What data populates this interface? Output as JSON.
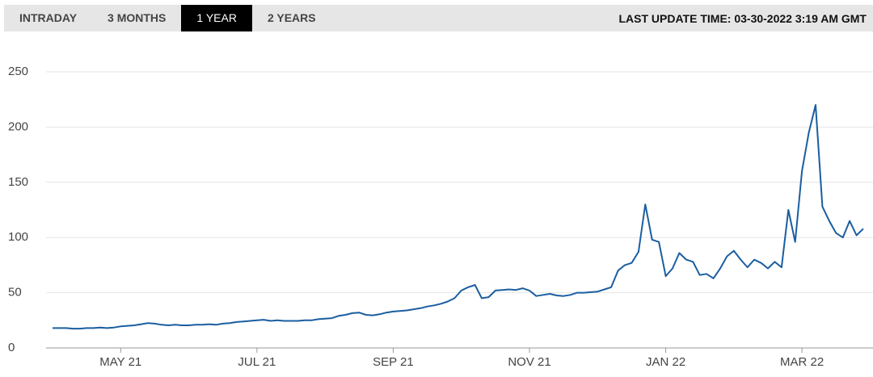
{
  "tabs": [
    {
      "label": "INTRADAY",
      "active": false
    },
    {
      "label": "3 MONTHS",
      "active": false
    },
    {
      "label": "1 YEAR",
      "active": true
    },
    {
      "label": "2 YEARS",
      "active": false
    }
  ],
  "last_update": "LAST UPDATE TIME: 03-30-2022 3:19 AM GMT",
  "chart_data": {
    "type": "line",
    "color": "#1a5ea0",
    "grid": true,
    "ylim": [
      0,
      250
    ],
    "yticks": [
      0,
      50,
      100,
      150,
      200,
      250
    ],
    "categories": [
      null,
      null,
      null,
      null,
      null,
      null,
      null,
      null,
      null,
      null,
      "MAY 21",
      null,
      null,
      null,
      null,
      null,
      null,
      null,
      null,
      null,
      null,
      null,
      null,
      null,
      null,
      null,
      null,
      null,
      null,
      null,
      "JUL 21",
      null,
      null,
      null,
      null,
      null,
      null,
      null,
      null,
      null,
      null,
      null,
      null,
      null,
      null,
      null,
      null,
      null,
      null,
      null,
      "SEP 21",
      null,
      null,
      null,
      null,
      null,
      null,
      null,
      null,
      null,
      null,
      null,
      null,
      null,
      null,
      null,
      null,
      null,
      null,
      null,
      "NOV 21",
      null,
      null,
      null,
      null,
      null,
      null,
      null,
      null,
      null,
      null,
      null,
      null,
      null,
      null,
      null,
      null,
      null,
      null,
      null,
      "JAN 22",
      null,
      null,
      null,
      null,
      null,
      null,
      null,
      null,
      null,
      null,
      null,
      null,
      null,
      null,
      null,
      null,
      null,
      null,
      null,
      "MAR 22",
      null,
      null,
      null,
      null,
      null,
      null,
      null,
      null,
      null
    ],
    "values": [
      18,
      18,
      18,
      17.5,
      17.5,
      18,
      18,
      18.5,
      18,
      18.5,
      19.5,
      20,
      20.5,
      21.5,
      22.5,
      22,
      21,
      20.5,
      21,
      20.5,
      20.5,
      21,
      21,
      21.5,
      21,
      22,
      22.5,
      23.5,
      24,
      24.5,
      25,
      25.5,
      24.5,
      25,
      24.5,
      24.5,
      24.5,
      25,
      25,
      26,
      26.5,
      27,
      29,
      30,
      31.5,
      32,
      30,
      29.5,
      30.5,
      32,
      33,
      33.5,
      34,
      35,
      36,
      37.5,
      38.5,
      40,
      42,
      45,
      52,
      55,
      57,
      45,
      46,
      52,
      52.5,
      53,
      52.5,
      54,
      52,
      47,
      48,
      49,
      47.5,
      47,
      48,
      50,
      50,
      50.5,
      51,
      53,
      55,
      70,
      75,
      77,
      87,
      130,
      98,
      96,
      65,
      72,
      86,
      80,
      78,
      66,
      67,
      63,
      72,
      83,
      88,
      80,
      73,
      80,
      77,
      72,
      78,
      73,
      125,
      96,
      160,
      195,
      220,
      128,
      115,
      104,
      100,
      115,
      102,
      108
    ]
  }
}
